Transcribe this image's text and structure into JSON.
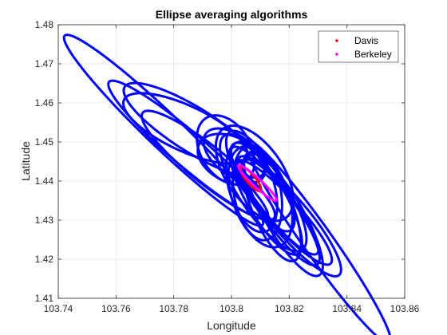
{
  "chart_data": {
    "type": "line",
    "title": "Ellipse averaging algorithms",
    "xlabel": "Longitude",
    "ylabel": "Latitude",
    "xlim": [
      103.74,
      103.86
    ],
    "ylim": [
      1.41,
      1.48
    ],
    "xticks": [
      "103.74",
      "103.76",
      "103.78",
      "103.8",
      "103.82",
      "103.84",
      "103.86"
    ],
    "yticks": [
      "1.41",
      "1.42",
      "1.43",
      "1.44",
      "1.45",
      "1.46",
      "1.47",
      "1.48"
    ],
    "grid": true,
    "legend_position": "top-right",
    "blue_color": "#0000ff",
    "ellipses": [
      {
        "cx": 103.7765,
        "cy": 1.453,
        "rx": 0.042,
        "ry": 0.005,
        "angle_deg": -35
      },
      {
        "cx": 103.785,
        "cy": 1.448,
        "rx": 0.0325,
        "ry": 0.0048,
        "angle_deg": -32
      },
      {
        "cx": 103.787,
        "cy": 1.453,
        "rx": 0.0265,
        "ry": 0.006,
        "angle_deg": -24
      },
      {
        "cx": 103.784,
        "cy": 1.4535,
        "rx": 0.0225,
        "ry": 0.006,
        "angle_deg": -18
      },
      {
        "cx": 103.792,
        "cy": 1.444,
        "rx": 0.0265,
        "ry": 0.0052,
        "angle_deg": -30
      },
      {
        "cx": 103.798,
        "cy": 1.448,
        "rx": 0.011,
        "ry": 0.0075,
        "angle_deg": -35
      },
      {
        "cx": 103.801,
        "cy": 1.4465,
        "rx": 0.0115,
        "ry": 0.0055,
        "angle_deg": -25
      },
      {
        "cx": 103.8,
        "cy": 1.4455,
        "rx": 0.012,
        "ry": 0.006,
        "angle_deg": -15
      },
      {
        "cx": 103.81,
        "cy": 1.44,
        "rx": 0.0165,
        "ry": 0.0058,
        "angle_deg": -48
      },
      {
        "cx": 103.808,
        "cy": 1.442,
        "rx": 0.016,
        "ry": 0.0085,
        "angle_deg": -40
      },
      {
        "cx": 103.811,
        "cy": 1.437,
        "rx": 0.02,
        "ry": 0.007,
        "angle_deg": -45
      },
      {
        "cx": 103.81,
        "cy": 1.436,
        "rx": 0.0145,
        "ry": 0.009,
        "angle_deg": -55
      },
      {
        "cx": 103.807,
        "cy": 1.4385,
        "rx": 0.0125,
        "ry": 0.0075,
        "angle_deg": -62
      },
      {
        "cx": 103.812,
        "cy": 1.4355,
        "rx": 0.018,
        "ry": 0.006,
        "angle_deg": -50
      },
      {
        "cx": 103.815,
        "cy": 1.435,
        "rx": 0.02,
        "ry": 0.0045,
        "angle_deg": -42
      },
      {
        "cx": 103.814,
        "cy": 1.4335,
        "rx": 0.016,
        "ry": 0.0065,
        "angle_deg": -58
      },
      {
        "cx": 103.817,
        "cy": 1.432,
        "rx": 0.0185,
        "ry": 0.005,
        "angle_deg": -45
      },
      {
        "cx": 103.809,
        "cy": 1.437,
        "rx": 0.0125,
        "ry": 0.008,
        "angle_deg": -72
      },
      {
        "cx": 103.818,
        "cy": 1.432,
        "rx": 0.021,
        "ry": 0.0045,
        "angle_deg": -38
      },
      {
        "cx": 103.82,
        "cy": 1.431,
        "rx": 0.023,
        "ry": 0.0055,
        "angle_deg": -40
      },
      {
        "cx": 103.818,
        "cy": 1.4315,
        "rx": 0.02,
        "ry": 0.006,
        "angle_deg": -50
      },
      {
        "cx": 103.83,
        "cy": 1.4245,
        "rx": 0.036,
        "ry": 0.0045,
        "angle_deg": -46
      }
    ],
    "series": [
      {
        "name": "Davis",
        "color": "#ff0000",
        "ellipse": {
          "cx": 103.8067,
          "cy": 1.4405,
          "rx": 0.0045,
          "ry": 0.0013,
          "angle_deg": -40
        }
      },
      {
        "name": "Berkeley",
        "color": "#ff00ff",
        "ellipse": {
          "cx": 103.809,
          "cy": 1.4395,
          "rx": 0.008,
          "ry": 0.0012,
          "angle_deg": -34
        }
      }
    ]
  }
}
